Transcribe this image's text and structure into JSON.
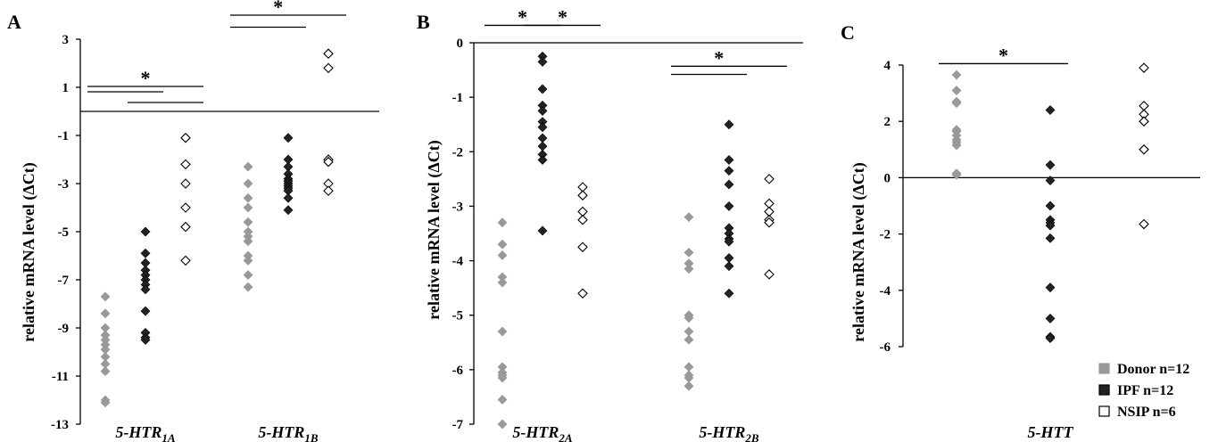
{
  "colors": {
    "Donor": "#999999",
    "IPF": "#222222",
    "NSIP": "#ffffff"
  },
  "legend": [
    {
      "label": "Donor n=12",
      "series": "Donor"
    },
    {
      "label": "IPF n=12",
      "series": "IPF"
    },
    {
      "label": "NSIP n=6",
      "series": "NSIP"
    }
  ],
  "chart_data": [
    {
      "panel": "A",
      "type": "scatter",
      "ylabel": "relative mRNA level (ΔCt)",
      "ylim": [
        -13,
        3
      ],
      "yticks": [
        3,
        1,
        -1,
        -3,
        -5,
        -7,
        -9,
        -11,
        -13
      ],
      "baseline": 0,
      "groups": [
        {
          "base": "5-HTR",
          "sub": "1A",
          "series": {
            "Donor": [
              -7.7,
              -8.4,
              -9.0,
              -9.3,
              -9.5,
              -9.7,
              -9.9,
              -10.2,
              -10.5,
              -10.8,
              -12.0,
              -12.1
            ],
            "IPF": [
              -5.0,
              -5.9,
              -6.3,
              -6.6,
              -6.8,
              -7.0,
              -7.2,
              -7.4,
              -8.3,
              -9.2,
              -9.4,
              -9.5
            ],
            "NSIP": [
              -1.1,
              -2.2,
              -3.0,
              -4.0,
              -4.8,
              -6.2
            ]
          }
        },
        {
          "base": "5-HTR",
          "sub": "1B",
          "series": {
            "Donor": [
              -2.3,
              -3.0,
              -3.6,
              -4.0,
              -4.6,
              -5.0,
              -5.2,
              -5.4,
              -6.0,
              -6.2,
              -6.8,
              -7.3
            ],
            "IPF": [
              -1.1,
              -2.0,
              -2.3,
              -2.6,
              -2.8,
              -2.9,
              -3.0,
              -3.1,
              -3.2,
              -3.3,
              -3.6,
              -4.1
            ],
            "NSIP": [
              2.4,
              1.8,
              -2.0,
              -2.1,
              -3.0,
              -3.3
            ]
          }
        }
      ],
      "significance": [
        {
          "label": "*",
          "brackets": [
            [
              0,
              1
            ],
            [
              0,
              2
            ],
            [
              1,
              2
            ]
          ]
        },
        {
          "label": "*",
          "brackets": [
            [
              3,
              4
            ],
            [
              3,
              5
            ]
          ]
        }
      ]
    },
    {
      "panel": "B",
      "type": "scatter",
      "ylabel": "relative mRNA level (ΔCt)",
      "ylim": [
        -7,
        0
      ],
      "yticks": [
        0,
        -1,
        -2,
        -3,
        -4,
        -5,
        -6,
        -7
      ],
      "baseline": 0,
      "groups": [
        {
          "base": "5-HTR",
          "sub": "2A",
          "series": {
            "Donor": [
              -3.3,
              -3.7,
              -3.9,
              -4.3,
              -4.4,
              -5.3,
              -5.95,
              -6.05,
              -6.1,
              -6.15,
              -6.55,
              -7.0
            ],
            "IPF": [
              -0.25,
              -0.35,
              -0.85,
              -1.15,
              -1.25,
              -1.45,
              -1.55,
              -1.75,
              -1.9,
              -2.05,
              -2.15,
              -3.45
            ],
            "NSIP": [
              -2.65,
              -2.8,
              -3.1,
              -3.25,
              -3.75,
              -4.6
            ]
          }
        },
        {
          "base": "5-HTR",
          "sub": "2B",
          "series": {
            "Donor": [
              -3.2,
              -3.85,
              -4.05,
              -4.15,
              -5.0,
              -5.05,
              -5.3,
              -5.45,
              -5.95,
              -6.1,
              -6.15,
              -6.3
            ],
            "IPF": [
              -1.5,
              -2.15,
              -2.35,
              -2.6,
              -3.0,
              -3.4,
              -3.5,
              -3.6,
              -3.65,
              -3.95,
              -4.1,
              -4.6
            ],
            "NSIP": [
              -2.5,
              -2.95,
              -3.1,
              -3.25,
              -3.3,
              -4.25
            ]
          }
        }
      ],
      "significance": [
        {
          "label": "*",
          "brackets": [
            [
              0,
              1
            ]
          ]
        },
        {
          "label": "*",
          "brackets": [
            [
              1,
              2
            ]
          ]
        },
        {
          "label": "*",
          "brackets": [
            [
              3,
              4
            ],
            [
              3,
              5
            ]
          ]
        }
      ]
    },
    {
      "panel": "C",
      "type": "scatter",
      "ylabel": "relative mRNA level (ΔCt)",
      "ylim": [
        -6,
        4
      ],
      "yticks": [
        4,
        2,
        0,
        -2,
        -4,
        -6
      ],
      "baseline": 0,
      "groups": [
        {
          "base": "5-HTT",
          "sub": "",
          "series": {
            "Donor": [
              3.65,
              3.1,
              2.7,
              2.65,
              1.7,
              1.65,
              1.5,
              1.35,
              1.25,
              1.15,
              0.15,
              0.1
            ],
            "IPF": [
              2.4,
              0.45,
              -0.1,
              -1.0,
              -1.5,
              -1.6,
              -1.7,
              -2.15,
              -3.9,
              -5.0,
              -5.65,
              -5.7
            ],
            "NSIP": [
              3.9,
              2.55,
              2.25,
              2.0,
              1.0,
              -1.65
            ]
          }
        }
      ],
      "significance": [
        {
          "label": "*",
          "brackets": [
            [
              0,
              1
            ]
          ]
        }
      ]
    }
  ]
}
